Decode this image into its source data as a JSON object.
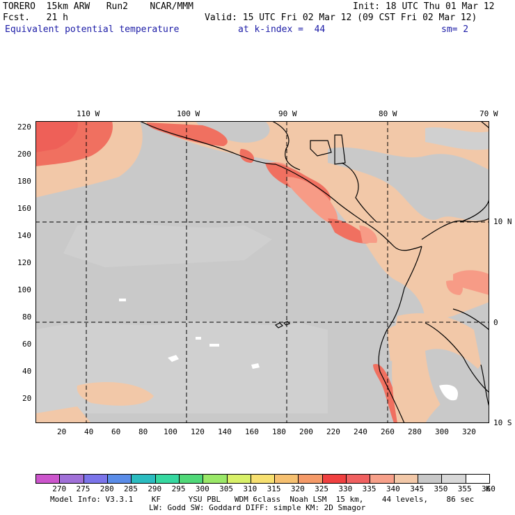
{
  "header": {
    "model": "TORERO  15km ARW   Run2    NCAR/MMM",
    "init": "Init: 18 UTC Thu 01 Mar 12",
    "fcst": "Fcst.   21 h",
    "valid": "Valid: 15 UTC Fri 02 Mar 12 (09 CST Fri 02 Mar 12)",
    "field": "Equivalent potential temperature",
    "level": "at k-index =  44",
    "smooth": "sm= 2"
  },
  "map": {
    "lon_labels": [
      "110 W",
      "100 W",
      "90 W",
      "80 W",
      "70 W"
    ],
    "lat_labels": [
      "10 N",
      "0",
      "10 S"
    ],
    "y_ticks": [
      "220",
      "200",
      "180",
      "160",
      "140",
      "120",
      "100",
      "80",
      "60",
      "40",
      "20"
    ],
    "x_ticks": [
      "20",
      "40",
      "60",
      "80",
      "100",
      "120",
      "140",
      "160",
      "180",
      "200",
      "220",
      "240",
      "260",
      "280",
      "300",
      "320"
    ],
    "colors": {
      "c340": "#f2c8a8",
      "c345": "#c8c8c8",
      "c350": "#dcdcdc",
      "c330": "#f0706a",
      "c335": "#f79b86",
      "c325": "#f4a070",
      "grid": "#000000",
      "coast": "#000000"
    }
  },
  "colorbar": {
    "levels": [
      "270",
      "275",
      "280",
      "285",
      "290",
      "295",
      "300",
      "305",
      "310",
      "315",
      "320",
      "325",
      "330",
      "335",
      "340",
      "345",
      "350",
      "355",
      "360"
    ],
    "unit": "K",
    "colors": [
      "#cc55cc",
      "#a070d8",
      "#7b74ea",
      "#5a8ce8",
      "#2bbcc0",
      "#36d8a0",
      "#50d878",
      "#9ae868",
      "#d8f068",
      "#f7e070",
      "#f6c070",
      "#f59a68",
      "#f04040",
      "#f06060",
      "#f7a08a",
      "#f2c8a8",
      "#c8c8c8",
      "#d8d8d8",
      "#ffffff"
    ]
  },
  "footer": {
    "line1": "Model Info: V3.3.1    KF      YSU PBL   WDM 6class  Noah LSM  15 km,    44 levels,    86 sec",
    "line2": "LW: Godd SW: Goddard DIFF: simple KM: 2D Smagor"
  }
}
